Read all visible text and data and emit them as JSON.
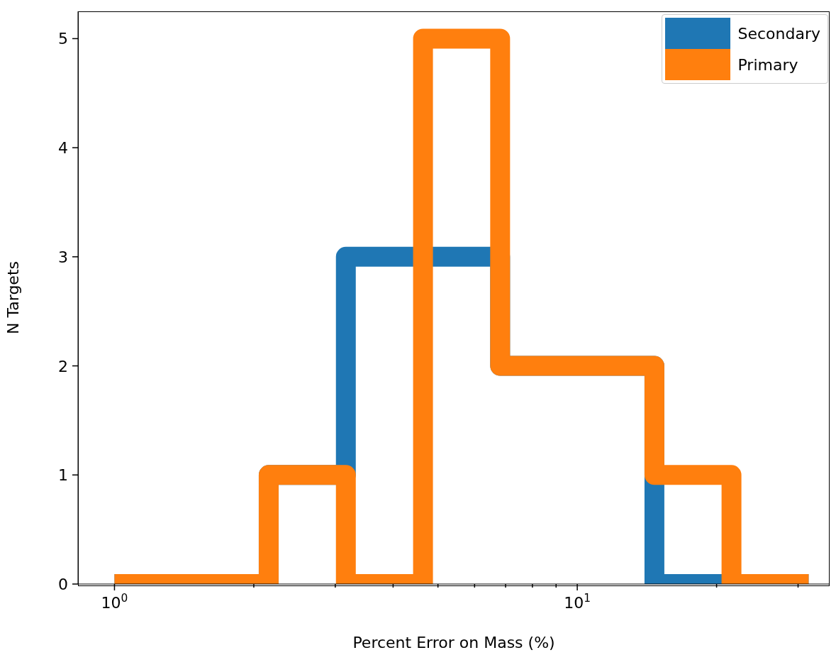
{
  "chart_data": {
    "type": "histogram",
    "xlabel": "Percent Error on Mass (%)",
    "ylabel": "N Targets",
    "bins": [
      1,
      1.468,
      2.154,
      3.162,
      4.642,
      6.813,
      10,
      14.68,
      21.54,
      31.62
    ],
    "series": [
      {
        "name": "Secondary",
        "color": "#1f77b4",
        "values": [
          0,
          0,
          1,
          3,
          3,
          2,
          2,
          0,
          0
        ]
      },
      {
        "name": "Primary",
        "color": "#ff7f0e",
        "values": [
          0,
          0,
          1,
          0,
          5,
          2,
          2,
          1,
          0
        ]
      }
    ],
    "log": "x",
    "xlim": [
      0.834,
      35.1
    ],
    "ylim": [
      0,
      5.25
    ],
    "xticks": [
      {
        "value": 1,
        "label": "10$^{0}$"
      },
      {
        "value": 2,
        "label": null
      },
      {
        "value": 3,
        "label": null
      },
      {
        "value": 4,
        "label": null
      },
      {
        "value": 5,
        "label": null
      },
      {
        "value": 6,
        "label": null
      },
      {
        "value": 7,
        "label": null
      },
      {
        "value": 8,
        "label": null
      },
      {
        "value": 9,
        "label": null
      },
      {
        "value": 10,
        "label": "10$^{1}$"
      },
      {
        "value": 20,
        "label": null
      },
      {
        "value": 30,
        "label": null
      }
    ],
    "yticks": [
      0,
      1,
      2,
      3,
      4,
      5
    ],
    "legend": "top right",
    "grid": false
  }
}
